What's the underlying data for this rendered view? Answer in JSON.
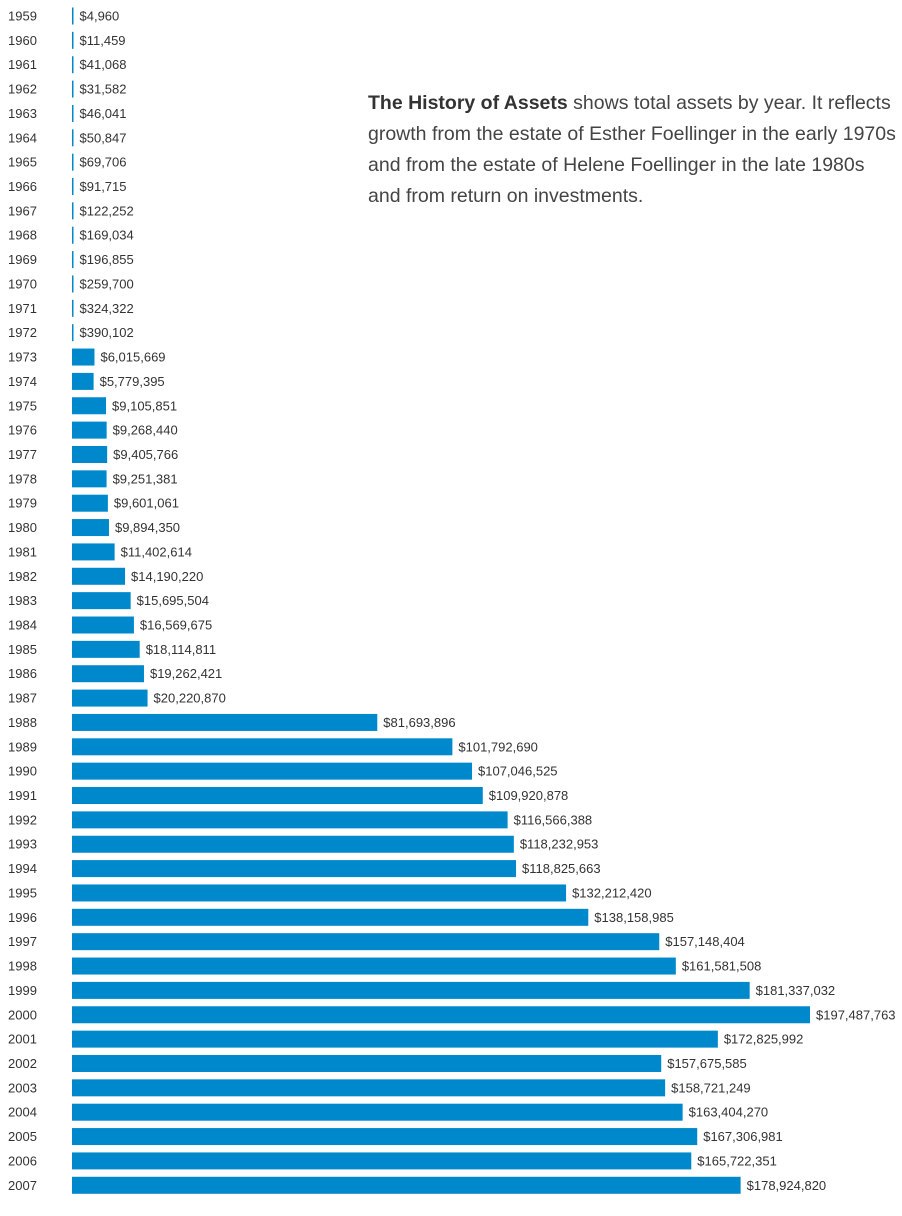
{
  "description": {
    "title": "The History of Assets",
    "text": " shows total assets by year. It reflects growth from the estate of Esther Foellinger in the early 1970s and from the estate of Helene Foellinger in the late 1980s and from return on investments."
  },
  "colors": {
    "bar": "#0088cc",
    "text": "#333333"
  },
  "chart_data": {
    "type": "bar",
    "orientation": "horizontal",
    "title": "",
    "xlabel": "",
    "ylabel": "",
    "grid": false,
    "legend": "none",
    "categories": [
      "1959",
      "1960",
      "1961",
      "1962",
      "1963",
      "1964",
      "1965",
      "1966",
      "1967",
      "1968",
      "1969",
      "1970",
      "1971",
      "1972",
      "1973",
      "1974",
      "1975",
      "1976",
      "1977",
      "1978",
      "1979",
      "1980",
      "1981",
      "1982",
      "1983",
      "1984",
      "1985",
      "1986",
      "1987",
      "1988",
      "1989",
      "1990",
      "1991",
      "1992",
      "1993",
      "1994",
      "1995",
      "1996",
      "1997",
      "1998",
      "1999",
      "2000",
      "2001",
      "2002",
      "2003",
      "2004",
      "2005",
      "2006",
      "2007"
    ],
    "values": [
      4960,
      11459,
      41068,
      31582,
      46041,
      50847,
      69706,
      91715,
      122252,
      169034,
      196855,
      259700,
      324322,
      390102,
      6015669,
      5779395,
      9105851,
      9268440,
      9405766,
      9251381,
      9601061,
      9894350,
      11402614,
      14190220,
      15695504,
      16569675,
      18114811,
      19262421,
      20220870,
      81693896,
      101792690,
      107046525,
      109920878,
      116566388,
      118232953,
      118825663,
      132212420,
      138158985,
      157148404,
      161581508,
      181337032,
      197487763,
      172825992,
      157675585,
      158721249,
      163404270,
      167306981,
      165722351,
      178924820
    ],
    "value_labels": [
      "$4,960",
      "$11,459",
      "$41,068",
      "$31,582",
      "$46,041",
      "$50,847",
      "$69,706",
      "$91,715",
      "$122,252",
      "$169,034",
      "$196,855",
      "$259,700",
      "$324,322",
      "$390,102",
      "$6,015,669",
      "$5,779,395",
      "$9,105,851",
      "$9,268,440",
      "$9,405,766",
      "$9,251,381",
      "$9,601,061",
      "$9,894,350",
      "$11,402,614",
      "$14,190,220",
      "$15,695,504",
      "$16,569,675",
      "$18,114,811",
      "$19,262,421",
      "$20,220,870",
      "$81,693,896",
      "$101,792,690",
      "$107,046,525",
      "$109,920,878",
      "$116,566,388",
      "$118,232,953",
      "$118,825,663",
      "$132,212,420",
      "$138,158,985",
      "$157,148,404",
      "$161,581,508",
      "$181,337,032",
      "$197,487,763",
      "$172,825,992",
      "$157,675,585",
      "$158,721,249",
      "$163,404,270",
      "$167,306,981",
      "$165,722,351",
      "$178,924,820"
    ]
  }
}
